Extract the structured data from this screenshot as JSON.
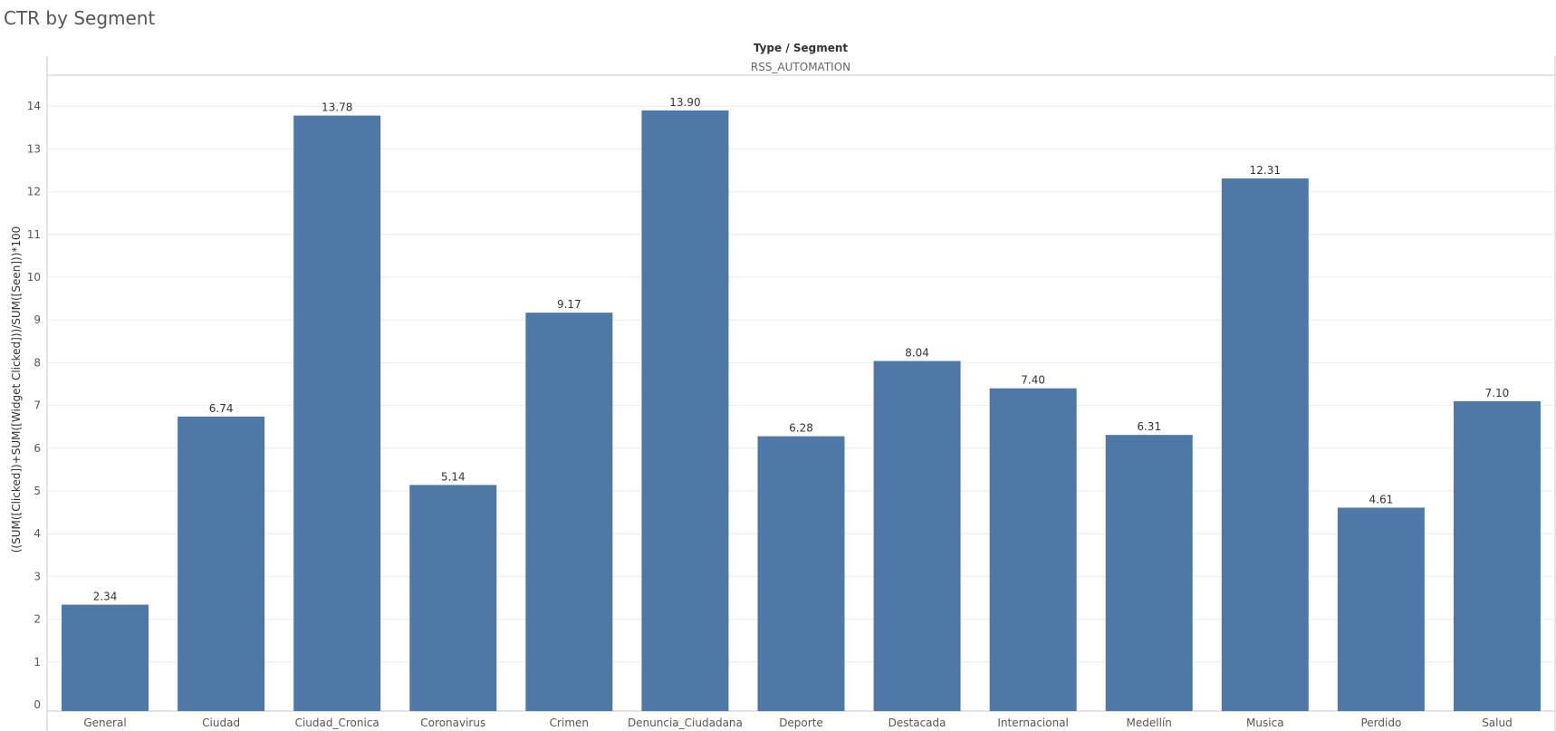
{
  "page": {
    "title": "CTR by Segment"
  },
  "chart_data": {
    "type": "bar",
    "header_title": "Type / Segment",
    "header_subtitle": "RSS_AUTOMATION",
    "ylabel": "((SUM([Clicked])+SUM([Widget Clicked]))/SUM([Seen]))*100",
    "xlabel": "",
    "categories": [
      "General",
      "Ciudad",
      "Ciudad_Cronica",
      "Coronavirus",
      "Crimen",
      "Denuncia_Ciudadana",
      "Deporte",
      "Destacada",
      "Internacional",
      "Medellín",
      "Musica",
      "Perdido",
      "Salud"
    ],
    "values": [
      2.34,
      6.74,
      13.78,
      5.14,
      9.17,
      13.9,
      6.28,
      8.04,
      7.4,
      6.31,
      12.31,
      4.61,
      7.1
    ],
    "value_labels": [
      "2.34",
      "6.74",
      "13.78",
      "5.14",
      "9.17",
      "13.90",
      "6.28",
      "8.04",
      "7.40",
      "6.31",
      "12.31",
      "4.61",
      "7.10"
    ],
    "ylim": [
      0,
      14
    ],
    "yticks": [
      "0",
      "1",
      "2",
      "3",
      "4",
      "5",
      "6",
      "7",
      "8",
      "9",
      "10",
      "11",
      "12",
      "13",
      "14"
    ],
    "grid": true,
    "legend": "none",
    "bar_color": "#4e79a7",
    "grid_color": "#ececec",
    "axis_color": "#c8c8c8"
  }
}
